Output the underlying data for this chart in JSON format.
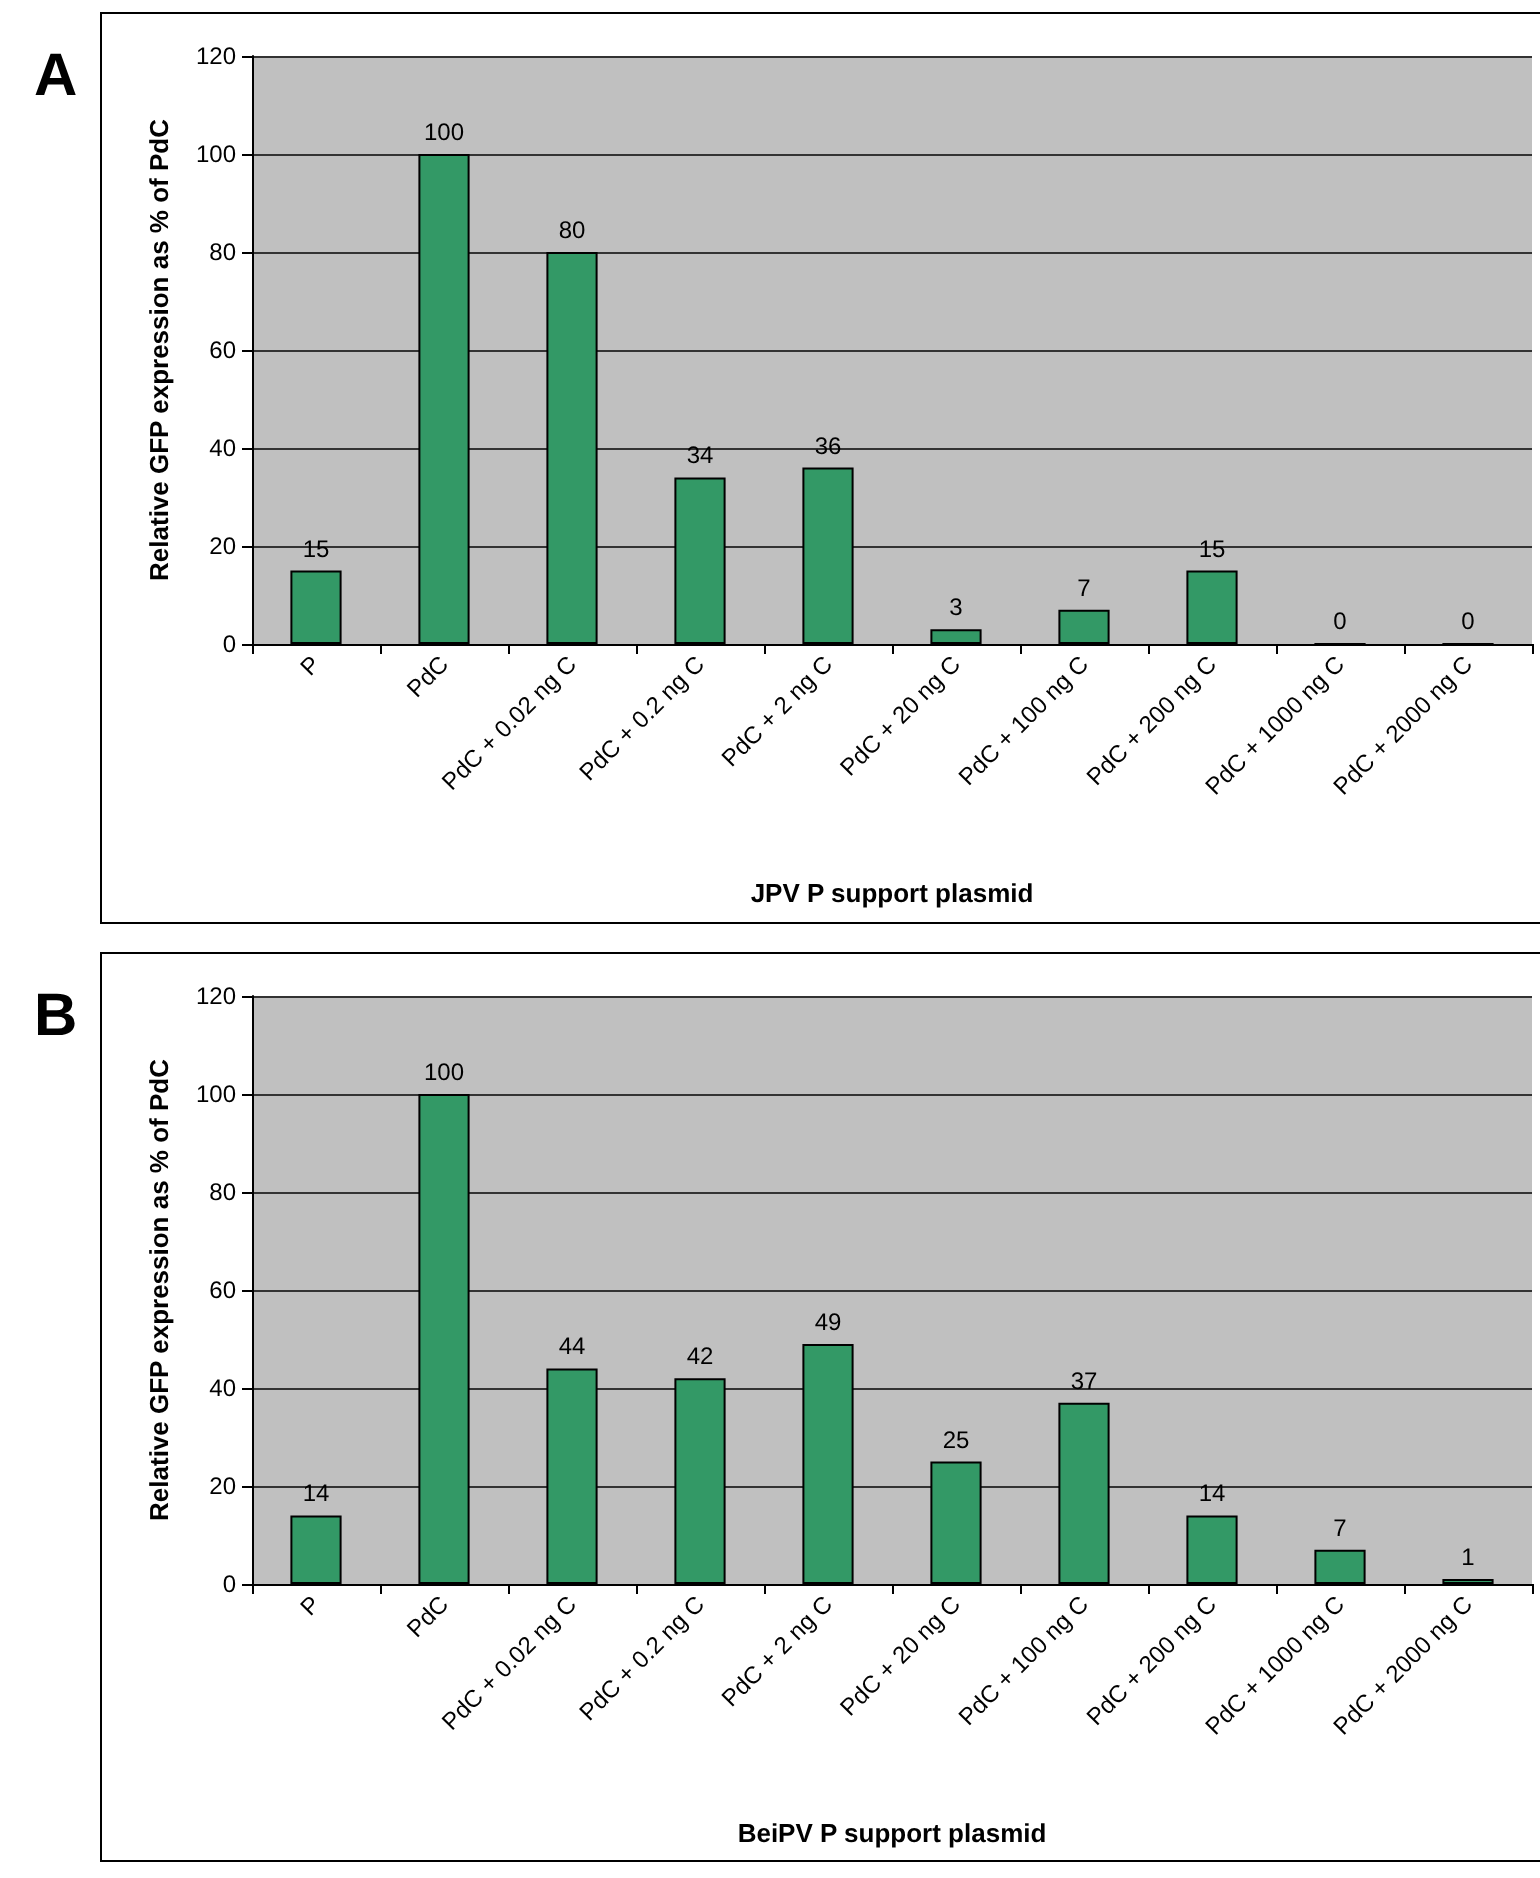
{
  "chart_data": [
    {
      "type": "bar",
      "title": "A",
      "xlabel": "JPV P support plasmid",
      "ylabel": "Relative GFP expression as % of PdC",
      "categories": [
        "P",
        "PdC",
        "PdC + 0.02 ng C",
        "PdC + 0.2 ng C",
        "PdC + 2 ng C",
        "PdC + 20 ng C",
        "PdC + 100 ng C",
        "PdC + 200 ng C",
        "PdC + 1000 ng C",
        "PdC + 2000 ng C"
      ],
      "values": [
        15,
        100,
        80,
        34,
        36,
        3,
        7,
        15,
        0,
        0
      ],
      "color": "#339966",
      "ylim": [
        0,
        120
      ],
      "yticks": [
        0,
        20,
        40,
        60,
        80,
        100,
        120
      ],
      "grid": "y",
      "data_labels": true
    },
    {
      "type": "bar",
      "title": "B",
      "xlabel": "BeiPV P support plasmid",
      "ylabel": "Relative GFP expression as % of PdC",
      "categories": [
        "P",
        "PdC",
        "PdC + 0.02 ng C",
        "PdC + 0.2 ng C",
        "PdC + 2 ng C",
        "PdC + 20 ng C",
        "PdC + 100 ng C",
        "PdC + 200 ng C",
        "PdC + 1000 ng C",
        "PdC + 2000 ng C"
      ],
      "values": [
        14,
        100,
        44,
        42,
        49,
        25,
        37,
        14,
        7,
        1
      ],
      "color": "#339966",
      "ylim": [
        0,
        120
      ],
      "yticks": [
        0,
        20,
        40,
        60,
        80,
        100,
        120
      ],
      "grid": "y",
      "data_labels": true
    }
  ]
}
